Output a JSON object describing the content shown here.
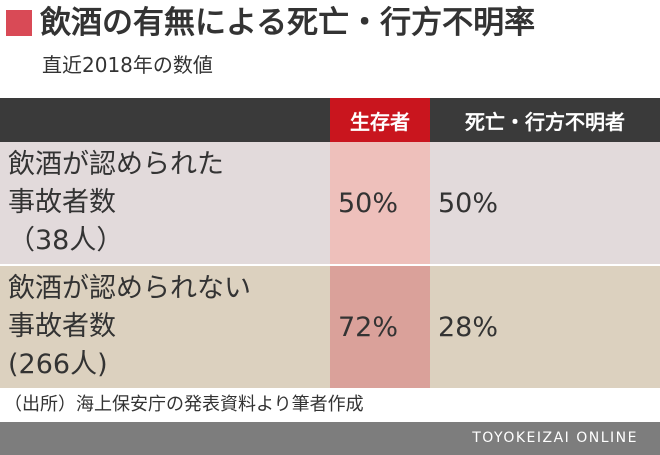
{
  "title": "飲酒の有無による死亡・行方不明率",
  "subtitle": "直近2018年の数値",
  "colors": {
    "accent": "#d94a56",
    "header_dark": "#3a3a3a",
    "header_red": "#c9151e",
    "footer": "#7d7d7d"
  },
  "chart_data": {
    "type": "table",
    "columns": [
      "",
      "生存者",
      "死亡・行方不明者"
    ],
    "rows": [
      {
        "label_lines": [
          "飲酒が認められた",
          "事故者数",
          "（38人）"
        ],
        "values": [
          "50%",
          "50%"
        ]
      },
      {
        "label_lines": [
          "飲酒が認められない",
          "事故者数",
          "(266人)"
        ],
        "values": [
          "72%",
          "28%"
        ]
      }
    ]
  },
  "source": "（出所）海上保安庁の発表資料より筆者作成",
  "brand": "TOYOKEIZAI ONLINE"
}
